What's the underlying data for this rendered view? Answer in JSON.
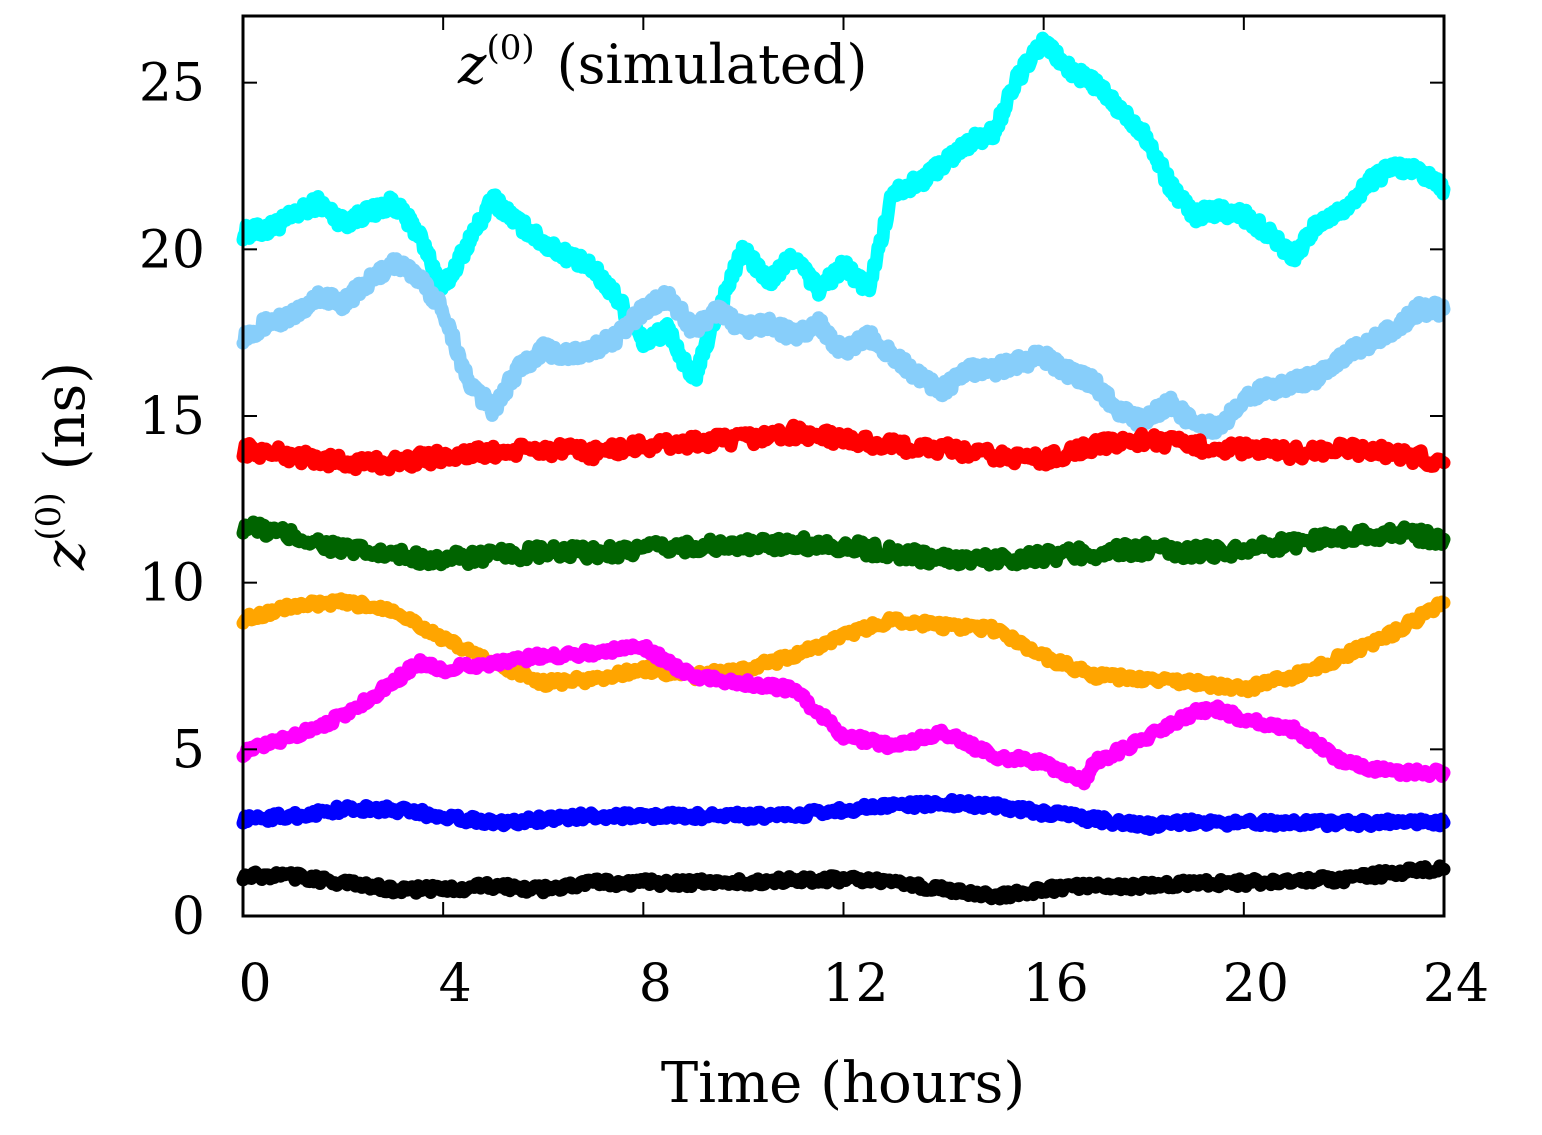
{
  "chart_data": {
    "type": "line",
    "title": "z(0) (simulated)",
    "title_parts": {
      "symbol": "z",
      "sup": "(0)",
      "rest": "(simulated)"
    },
    "xlabel": "Time (hours)",
    "ylabel": "z(0) (ns)",
    "ylabel_parts": {
      "symbol": "z",
      "sup": "(0)",
      "rest": "(ns)"
    },
    "xlim": [
      0,
      24
    ],
    "ylim": [
      0,
      27
    ],
    "xticks": [
      0,
      4,
      8,
      12,
      16,
      20,
      24
    ],
    "yticks": [
      0,
      5,
      10,
      15,
      20,
      25
    ],
    "grid": false,
    "series": [
      {
        "name": "cyan",
        "color": "#00ffff",
        "x": [
          0,
          0.5,
          1,
          1.5,
          2,
          2.5,
          3,
          3.5,
          4,
          4.5,
          5,
          5.5,
          6,
          6.5,
          7,
          7.5,
          8,
          8.5,
          9,
          9.5,
          10,
          10.5,
          11,
          11.5,
          12,
          12.5,
          13,
          13.5,
          14,
          14.5,
          15,
          15.5,
          16,
          16.5,
          17,
          17.5,
          18,
          18.5,
          19,
          19.5,
          20,
          20.5,
          21,
          21.5,
          22,
          22.5,
          23,
          23.5,
          24
        ],
        "y": [
          20.5,
          20.6,
          21.0,
          21.4,
          20.8,
          21.1,
          21.4,
          20.5,
          18.8,
          20.2,
          21.5,
          20.8,
          20.2,
          19.8,
          19.4,
          18.5,
          17.2,
          17.6,
          16.0,
          18.2,
          20.0,
          19.0,
          19.8,
          18.8,
          19.5,
          18.8,
          21.8,
          22.0,
          22.6,
          23.2,
          23.5,
          25.2,
          26.2,
          25.4,
          25.0,
          24.2,
          23.5,
          22.0,
          21.0,
          21.2,
          21.0,
          20.5,
          19.8,
          20.8,
          21.2,
          22.0,
          22.5,
          22.3,
          21.8
        ]
      },
      {
        "name": "lightblue",
        "color": "#87cefa",
        "x": [
          0,
          0.5,
          1,
          1.5,
          2,
          2.5,
          3,
          3.5,
          4,
          4.5,
          5,
          5.5,
          6,
          6.5,
          7,
          7.5,
          8,
          8.5,
          9,
          9.5,
          10,
          10.5,
          11,
          11.5,
          12,
          12.5,
          13,
          13.5,
          14,
          14.5,
          15,
          15.5,
          16,
          16.5,
          17,
          17.5,
          18,
          18.5,
          19,
          19.5,
          20,
          20.5,
          21,
          21.5,
          22,
          22.5,
          23,
          23.5,
          24
        ],
        "y": [
          17.4,
          17.8,
          18.0,
          18.6,
          18.4,
          19.0,
          19.6,
          19.2,
          18.2,
          16.0,
          15.2,
          16.4,
          17.0,
          16.8,
          17.0,
          17.4,
          18.2,
          18.6,
          17.6,
          18.2,
          17.6,
          17.8,
          17.4,
          17.8,
          16.9,
          17.4,
          16.8,
          16.2,
          15.8,
          16.4,
          16.4,
          16.6,
          16.8,
          16.3,
          16.0,
          15.2,
          14.8,
          15.4,
          14.8,
          14.6,
          15.6,
          15.8,
          16.0,
          16.2,
          16.8,
          17.2,
          17.6,
          18.2,
          18.2
        ]
      },
      {
        "name": "red",
        "color": "#ff0000",
        "x": [
          0,
          1,
          2,
          3,
          4,
          5,
          6,
          7,
          8,
          9,
          10,
          11,
          12,
          13,
          14,
          15,
          16,
          17,
          18,
          19,
          20,
          21,
          22,
          23,
          24
        ],
        "y": [
          14.0,
          13.8,
          13.6,
          13.6,
          13.8,
          13.9,
          14.0,
          13.9,
          14.1,
          14.2,
          14.3,
          14.5,
          14.3,
          14.1,
          14.0,
          13.8,
          13.7,
          14.1,
          14.3,
          14.1,
          14.0,
          13.9,
          14.0,
          13.9,
          13.6
        ]
      },
      {
        "name": "darkgreen",
        "color": "#006400",
        "x": [
          0,
          1,
          2,
          3,
          4,
          5,
          6,
          7,
          8,
          9,
          10,
          11,
          12,
          13,
          14,
          15,
          16,
          17,
          18,
          19,
          20,
          21,
          22,
          23,
          24
        ],
        "y": [
          11.7,
          11.4,
          11.0,
          10.8,
          10.7,
          10.8,
          10.9,
          10.9,
          11.0,
          11.1,
          11.1,
          11.2,
          11.1,
          10.9,
          10.7,
          10.7,
          10.8,
          10.9,
          11.0,
          10.9,
          11.0,
          11.2,
          11.4,
          11.5,
          11.3
        ]
      },
      {
        "name": "orange",
        "color": "#ffa500",
        "x": [
          0,
          1,
          2,
          3,
          4,
          5,
          6,
          7,
          8,
          9,
          10,
          11,
          12,
          13,
          14,
          15,
          16,
          17,
          18,
          19,
          20,
          21,
          22,
          23,
          24
        ],
        "y": [
          8.9,
          9.3,
          9.4,
          9.2,
          8.3,
          7.6,
          7.0,
          7.1,
          7.4,
          7.2,
          7.4,
          7.8,
          8.4,
          8.9,
          8.7,
          8.6,
          7.8,
          7.2,
          7.1,
          7.0,
          6.8,
          7.2,
          7.8,
          8.5,
          9.4
        ]
      },
      {
        "name": "magenta",
        "color": "#ff00ff",
        "x": [
          0,
          1,
          2,
          3,
          3.5,
          4,
          5,
          6,
          7,
          8,
          8.5,
          9,
          10,
          11,
          12,
          13,
          14,
          15,
          16,
          16.8,
          17,
          18,
          19,
          19.5,
          20,
          21,
          22,
          23,
          24
        ],
        "y": [
          4.9,
          5.4,
          6.0,
          7.0,
          7.6,
          7.4,
          7.6,
          7.8,
          7.9,
          8.1,
          7.6,
          7.2,
          7.0,
          6.8,
          5.4,
          5.1,
          5.5,
          4.8,
          4.6,
          4.0,
          4.6,
          5.3,
          6.1,
          6.2,
          5.9,
          5.6,
          4.6,
          4.3,
          4.3
        ]
      },
      {
        "name": "blue",
        "color": "#0000ff",
        "x": [
          0,
          1,
          2,
          3,
          4,
          5,
          6,
          7,
          8,
          9,
          10,
          11,
          12,
          13,
          14,
          15,
          16,
          17,
          18,
          19,
          20,
          21,
          22,
          23,
          24
        ],
        "y": [
          2.9,
          3.0,
          3.2,
          3.2,
          3.0,
          2.8,
          2.9,
          3.0,
          3.0,
          3.0,
          3.0,
          3.0,
          3.2,
          3.3,
          3.4,
          3.3,
          3.1,
          2.9,
          2.7,
          2.8,
          2.8,
          2.8,
          2.8,
          2.8,
          2.8
        ]
      },
      {
        "name": "black",
        "color": "#000000",
        "x": [
          0,
          1,
          2,
          3,
          4,
          5,
          6,
          7,
          8,
          9,
          10,
          11,
          12,
          13,
          14,
          15,
          16,
          17,
          18,
          19,
          20,
          21,
          22,
          23,
          24
        ],
        "y": [
          1.2,
          1.2,
          1.0,
          0.8,
          0.8,
          0.9,
          0.8,
          1.0,
          1.0,
          1.0,
          1.0,
          1.1,
          1.1,
          1.0,
          0.8,
          0.6,
          0.8,
          0.9,
          0.9,
          1.0,
          1.0,
          1.1,
          1.1,
          1.3,
          1.4
        ]
      }
    ]
  }
}
